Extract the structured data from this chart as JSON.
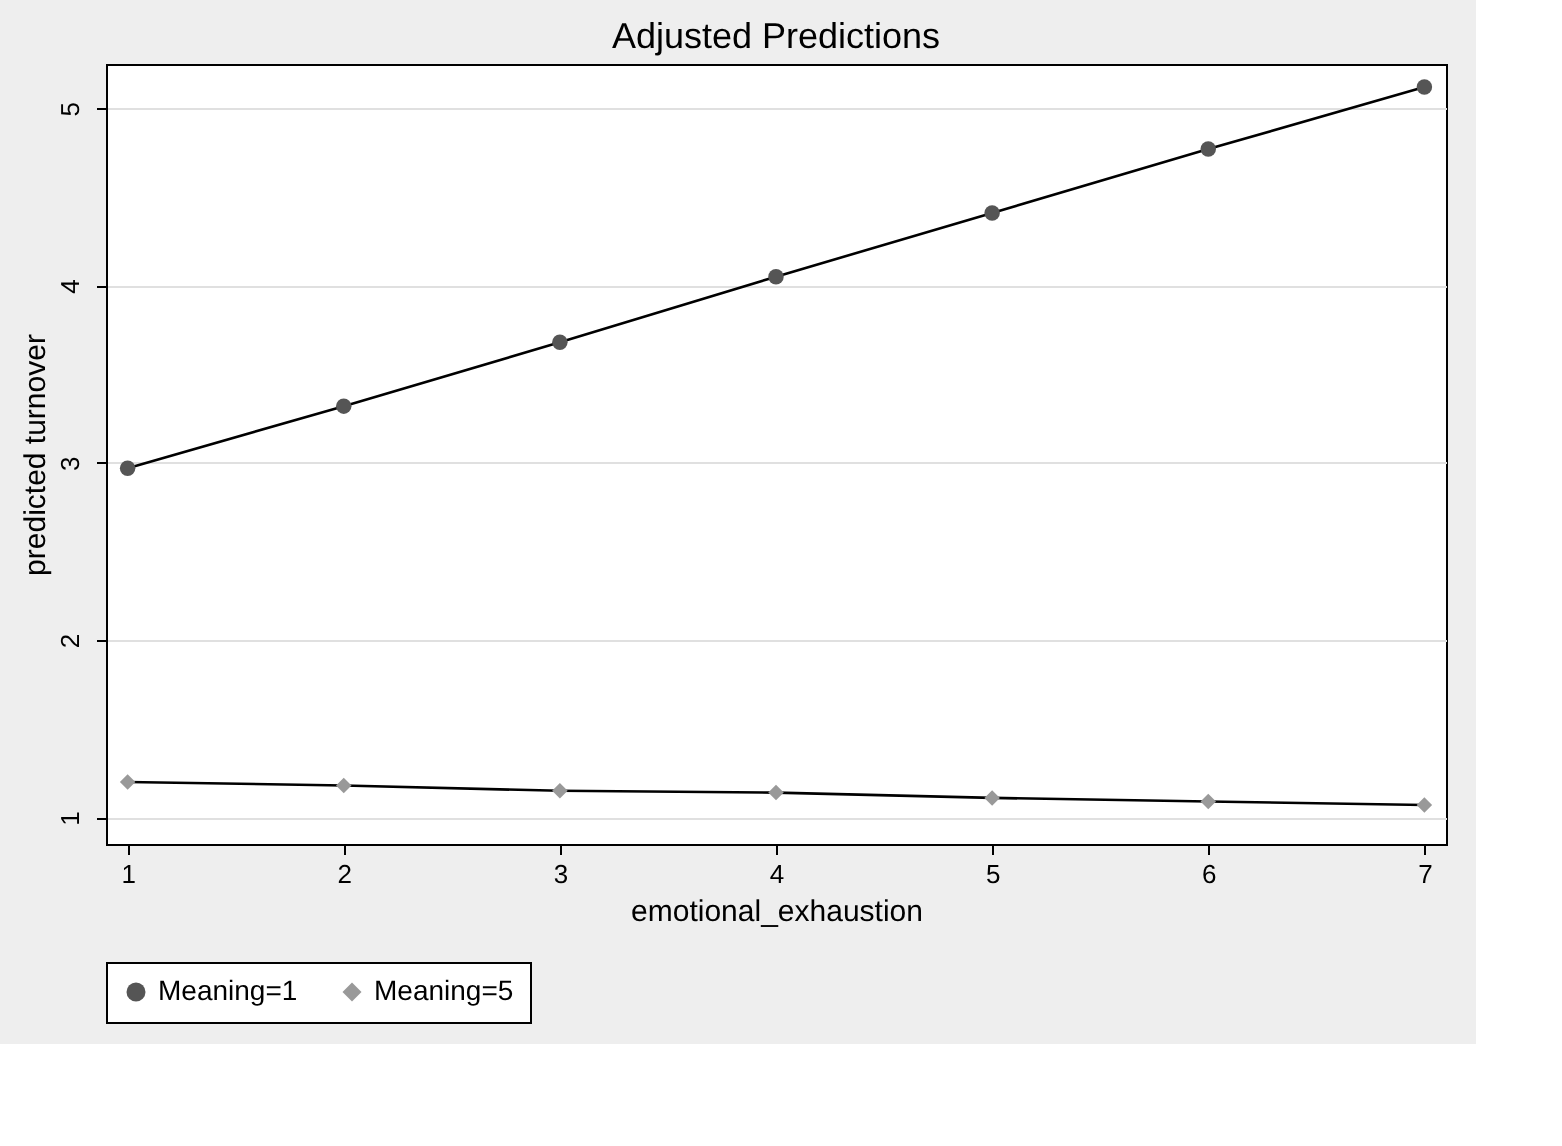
{
  "chart_data": {
    "type": "line",
    "title": "Adjusted Predictions",
    "xlabel": "emotional_exhaustion",
    "ylabel": "predicted turnover",
    "x": [
      1,
      2,
      3,
      4,
      5,
      6,
      7
    ],
    "series": [
      {
        "name": "Meaning=1",
        "color": "#555555",
        "marker": "circle",
        "values": [
          2.97,
          3.32,
          3.68,
          4.05,
          4.41,
          4.77,
          5.12
        ]
      },
      {
        "name": "Meaning=5",
        "color": "#999999",
        "marker": "diamond",
        "values": [
          1.2,
          1.18,
          1.15,
          1.14,
          1.11,
          1.09,
          1.07
        ]
      }
    ],
    "xlim": [
      0.9,
      7.1
    ],
    "ylim": [
      0.85,
      5.25
    ],
    "xticks": [
      1,
      2,
      3,
      4,
      5,
      6,
      7
    ],
    "yticks": [
      1,
      2,
      3,
      4,
      5
    ],
    "grid": "y",
    "legend": "bottom",
    "line_style": "solid"
  }
}
